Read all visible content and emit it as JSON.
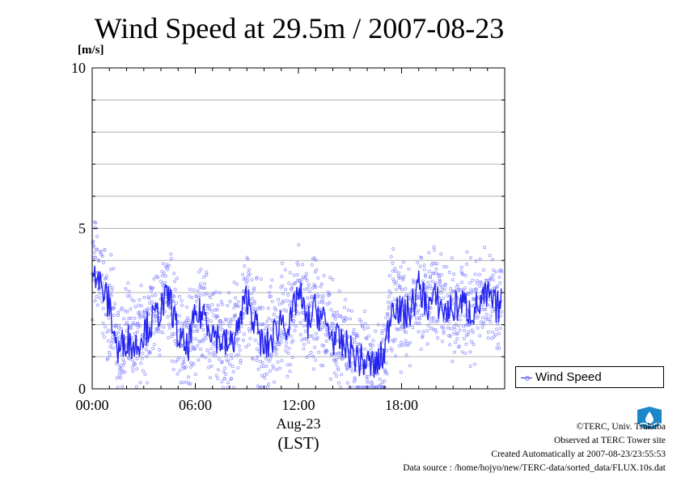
{
  "title": "Wind Speed at 29.5m / 2007-08-23",
  "unit_label": "[m/s]",
  "legend_label": "Wind Speed",
  "x_date_label": "Aug-23",
  "x_tz_label": "(LST)",
  "credits": {
    "copyright": "©TERC, Univ. Tsukuba",
    "observed": "Observed at TERC Tower site",
    "created": "Created Automatically at 2007-08-23/23:55:53",
    "source": "Data source : /home/hojyo/new/TERC-data/sorted_data/FLUX.10s.dat"
  },
  "logo_text": "TERC",
  "colors": {
    "line": "#2222ee",
    "points": "#7777ff",
    "grid": "#b4b4b4",
    "logo": "#1b86c8"
  },
  "chart_data": {
    "type": "line",
    "title": "Wind Speed at 29.5m / 2007-08-23",
    "ylabel": "[m/s]",
    "xlabel": "Aug-23 (LST)",
    "ylim": [
      0,
      10
    ],
    "xlim": [
      "00:00",
      "24:00"
    ],
    "x_ticks": [
      "00:00",
      "06:00",
      "12:00",
      "18:00"
    ],
    "y_ticks": [
      "0",
      "5",
      "10"
    ],
    "grid": true,
    "legend": "right-bottom",
    "series": [
      {
        "name": "Wind Speed",
        "x": [
          "00:00",
          "00:30",
          "01:00",
          "01:30",
          "02:00",
          "02:30",
          "03:00",
          "03:30",
          "04:00",
          "04:30",
          "05:00",
          "05:30",
          "06:00",
          "06:30",
          "07:00",
          "07:30",
          "08:00",
          "08:30",
          "09:00",
          "09:30",
          "10:00",
          "10:30",
          "11:00",
          "11:30",
          "12:00",
          "12:30",
          "13:00",
          "13:30",
          "14:00",
          "14:30",
          "15:00",
          "15:30",
          "16:00",
          "16:30",
          "17:00",
          "17:30",
          "18:00",
          "18:30",
          "19:00",
          "19:30",
          "20:00",
          "20:30",
          "21:00",
          "21:30",
          "22:00",
          "22:30",
          "23:00",
          "23:30",
          "23:50"
        ],
        "values": [
          4.0,
          3.2,
          2.6,
          1.1,
          1.6,
          1.3,
          1.8,
          2.1,
          2.5,
          2.9,
          1.6,
          1.2,
          2.2,
          2.4,
          1.8,
          1.5,
          1.3,
          1.9,
          2.9,
          2.0,
          1.2,
          1.6,
          2.2,
          1.9,
          3.1,
          2.0,
          2.5,
          2.1,
          1.6,
          1.4,
          1.2,
          0.9,
          0.8,
          0.7,
          1.1,
          2.8,
          2.3,
          2.4,
          3.2,
          2.6,
          2.8,
          2.4,
          2.5,
          2.7,
          2.4,
          2.6,
          2.9,
          2.5,
          2.7
        ]
      }
    ]
  }
}
